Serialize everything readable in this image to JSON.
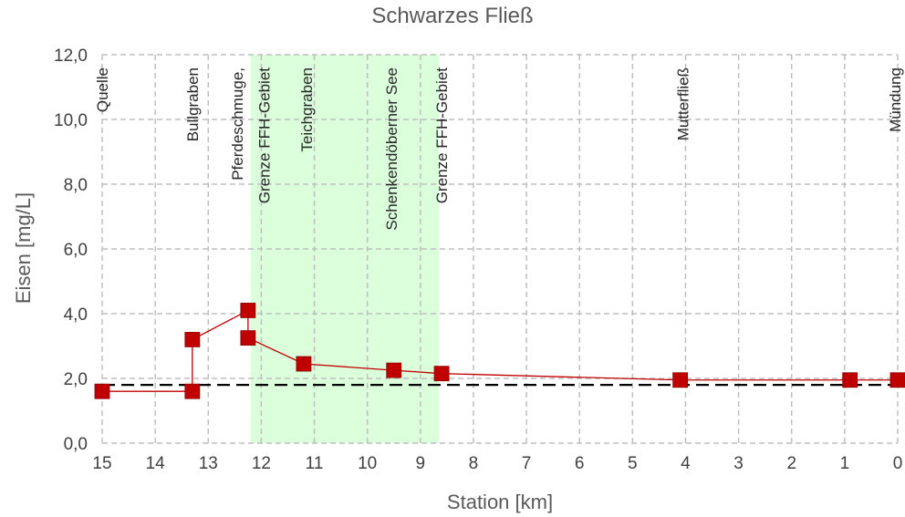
{
  "chart_data": {
    "type": "scatter",
    "title": "Schwarzes Fließ",
    "xlabel": "Station [km]",
    "ylabel": "Eisen [mg/L]",
    "xlim": [
      15,
      0
    ],
    "ylim": [
      0,
      12
    ],
    "x_ticks": [
      15,
      14,
      13,
      12,
      11,
      10,
      9,
      8,
      7,
      6,
      5,
      4,
      3,
      2,
      1,
      0
    ],
    "x_tick_labels": [
      "15",
      "14",
      "13",
      "12",
      "11",
      "10",
      "9",
      "8",
      "7",
      "6",
      "5",
      "4",
      "3",
      "2",
      "1",
      "0"
    ],
    "y_ticks": [
      0,
      2,
      4,
      6,
      8,
      10,
      12
    ],
    "y_tick_labels": [
      "0,0",
      "2,0",
      "4,0",
      "6,0",
      "8,0",
      "10,0",
      "12,0"
    ],
    "grid": true,
    "legend": "none",
    "series": [
      {
        "x": [
          15.0,
          13.3,
          13.3,
          12.25,
          12.25,
          11.2,
          9.5,
          8.6,
          4.1,
          0.9,
          0.0
        ],
        "y": [
          1.6,
          1.6,
          3.2,
          4.1,
          3.25,
          2.45,
          2.25,
          2.15,
          1.95,
          1.95,
          1.95
        ],
        "color": "#c00000"
      }
    ],
    "reference_line": {
      "y": 1.8,
      "color": "#000000"
    },
    "shaded_region": {
      "x": [
        12.2,
        8.65
      ],
      "color": "#ccffcc"
    },
    "annotations": [
      {
        "x": 15.0,
        "text": "Quelle"
      },
      {
        "x": 13.3,
        "text": "Bullgraben"
      },
      {
        "x": 12.45,
        "text": "Pferdeschmuge,"
      },
      {
        "x": 11.95,
        "text": "Grenze FFH-Gebiet"
      },
      {
        "x": 11.15,
        "text": "Teichgraben"
      },
      {
        "x": 9.55,
        "text": "Schenkendöberner See"
      },
      {
        "x": 8.6,
        "text": "Grenze FFH-Gebiet"
      },
      {
        "x": 4.05,
        "text": "Mutterfließ"
      },
      {
        "x": 0.05,
        "text": "Mündung"
      }
    ]
  }
}
